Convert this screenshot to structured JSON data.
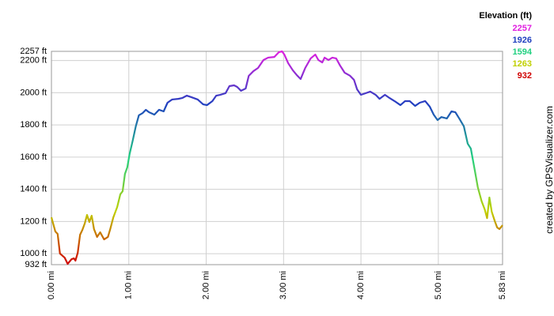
{
  "chart_data": {
    "type": "line",
    "legend_title": "Elevation (ft)",
    "color_scale": [
      {
        "value": 2257,
        "color": "#e020e0"
      },
      {
        "value": 1926,
        "color": "#2040c0"
      },
      {
        "value": 1594,
        "color": "#20d080"
      },
      {
        "value": 1263,
        "color": "#c0d000"
      },
      {
        "value": 932,
        "color": "#d00000"
      }
    ],
    "credit": "created by GPSVisualizer.com",
    "xlim": [
      0,
      5.83
    ],
    "ylim": [
      932,
      2257
    ],
    "xticks": [
      {
        "value": 0,
        "label": "0.00 mi"
      },
      {
        "value": 1,
        "label": "1.00 mi"
      },
      {
        "value": 2,
        "label": "2.00 mi"
      },
      {
        "value": 3,
        "label": "3.00 mi"
      },
      {
        "value": 4,
        "label": "4.00 mi"
      },
      {
        "value": 5,
        "label": "5.00 mi"
      },
      {
        "value": 5.83,
        "label": "5.83 mi"
      }
    ],
    "yticks": [
      {
        "value": 932,
        "label": "932 ft"
      },
      {
        "value": 1000,
        "label": "1000 ft"
      },
      {
        "value": 1200,
        "label": "1200 ft"
      },
      {
        "value": 1400,
        "label": "1400 ft"
      },
      {
        "value": 1600,
        "label": "1600 ft"
      },
      {
        "value": 1800,
        "label": "1800 ft"
      },
      {
        "value": 2000,
        "label": "2000 ft"
      },
      {
        "value": 2200,
        "label": "2200 ft"
      },
      {
        "value": 2257,
        "label": "2257 ft"
      }
    ],
    "grid": true,
    "x": [
      0,
      0.05,
      0.08,
      0.11,
      0.17,
      0.21,
      0.26,
      0.29,
      0.31,
      0.34,
      0.37,
      0.4,
      0.43,
      0.46,
      0.49,
      0.52,
      0.55,
      0.59,
      0.63,
      0.68,
      0.73,
      0.76,
      0.8,
      0.85,
      0.89,
      0.92,
      0.95,
      0.98,
      1.01,
      1.05,
      1.09,
      1.13,
      1.18,
      1.22,
      1.26,
      1.33,
      1.39,
      1.45,
      1.5,
      1.56,
      1.64,
      1.69,
      1.75,
      1.81,
      1.89,
      1.96,
      2.01,
      2.08,
      2.13,
      2.18,
      2.25,
      2.3,
      2.36,
      2.4,
      2.45,
      2.51,
      2.55,
      2.61,
      2.67,
      2.74,
      2.8,
      2.88,
      2.94,
      2.98,
      3.01,
      3.06,
      3.12,
      3.17,
      3.22,
      3.28,
      3.35,
      3.41,
      3.45,
      3.5,
      3.53,
      3.58,
      3.63,
      3.68,
      3.73,
      3.79,
      3.86,
      3.91,
      3.95,
      4.0,
      4.06,
      4.12,
      4.19,
      4.24,
      4.31,
      4.37,
      4.45,
      4.51,
      4.57,
      4.63,
      4.7,
      4.76,
      4.83,
      4.89,
      4.94,
      4.99,
      5.04,
      5.11,
      5.17,
      5.22,
      5.27,
      5.33,
      5.38,
      5.42,
      5.47,
      5.51,
      5.56,
      5.6,
      5.63,
      5.66,
      5.69,
      5.73,
      5.76,
      5.79,
      5.83
    ],
    "series": [
      {
        "color": "gradient",
        "values": [
          1226,
          1138,
          1123,
          1001,
          976,
          937,
          966,
          971,
          957,
          1006,
          1118,
          1148,
          1187,
          1241,
          1197,
          1236,
          1153,
          1104,
          1133,
          1089,
          1104,
          1153,
          1226,
          1290,
          1369,
          1388,
          1496,
          1536,
          1619,
          1702,
          1791,
          1860,
          1874,
          1894,
          1879,
          1864,
          1894,
          1884,
          1938,
          1958,
          1962,
          1967,
          1982,
          1972,
          1958,
          1928,
          1923,
          1948,
          1982,
          1987,
          1997,
          2041,
          2046,
          2036,
          2012,
          2026,
          2105,
          2134,
          2154,
          2203,
          2218,
          2222,
          2252,
          2257,
          2237,
          2183,
          2139,
          2110,
          2085,
          2154,
          2213,
          2237,
          2203,
          2188,
          2218,
          2203,
          2218,
          2213,
          2169,
          2124,
          2105,
          2080,
          2021,
          1987,
          1997,
          2007,
          1987,
          1962,
          1987,
          1967,
          1943,
          1923,
          1948,
          1948,
          1918,
          1938,
          1948,
          1913,
          1864,
          1830,
          1849,
          1840,
          1884,
          1879,
          1840,
          1791,
          1683,
          1653,
          1521,
          1413,
          1325,
          1275,
          1221,
          1349,
          1261,
          1202,
          1163,
          1153,
          1177
        ]
      }
    ]
  }
}
